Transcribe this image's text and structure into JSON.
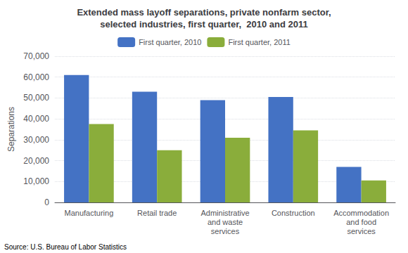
{
  "chart_data": {
    "type": "bar",
    "title": "Extended mass layoff separations, private nonfarm sector,\nselected industries, first quarter,  2010 and 2011",
    "categories": [
      "Manufacturing",
      "Retail trade",
      "Administrative\nand waste\nservices",
      "Construction",
      "Accommodation\nand food\nservices"
    ],
    "series": [
      {
        "name": "First quarter, 2010",
        "color": "#4472C4",
        "values": [
          61000,
          53000,
          49000,
          50500,
          17000
        ]
      },
      {
        "name": "First quarter, 2011",
        "color": "#8AAD3B",
        "values": [
          37500,
          25000,
          31000,
          34500,
          10500
        ]
      }
    ],
    "ylabel": "Separations",
    "ylim": [
      0,
      70000
    ],
    "yticks": [
      0,
      {
        "value": 10000,
        "label": "10,000"
      },
      {
        "value": 20000,
        "label": "20,000"
      },
      {
        "value": 30000,
        "label": "30,000"
      },
      {
        "value": 40000,
        "label": "40,000"
      },
      {
        "value": 50000,
        "label": "50,000"
      },
      {
        "value": 60000,
        "label": "60,000"
      },
      {
        "value": 70000,
        "label": "70,000"
      }
    ],
    "source": "Source: U.S. Bureau of Labor Statistics",
    "grid": true,
    "legend": "top"
  }
}
